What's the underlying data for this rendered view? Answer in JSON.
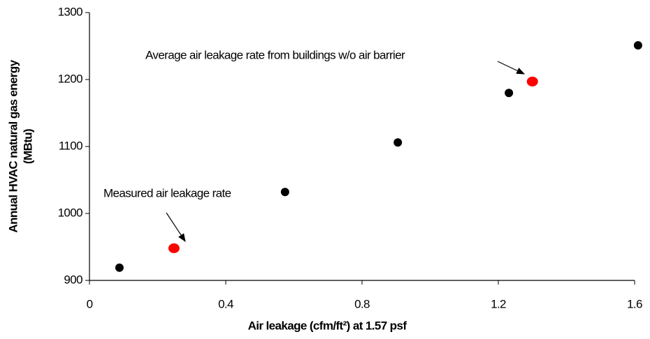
{
  "chart_data": {
    "type": "scatter",
    "xlabel": "Air leakage (cfm/ft²) at 1.57 psf",
    "ylabel": [
      "Annual HVAC natural gas energy",
      "(MBtu)"
    ],
    "annotations": [
      "Average air leakage rate from buildings w/o air barrier",
      "Measured air leakage rate"
    ],
    "series": [
      {
        "color": "#000000",
        "x": [
          0.088,
          0.574,
          0.905,
          1.231,
          1.61
        ],
        "values": [
          919,
          1032,
          1106,
          1180,
          1251
        ]
      },
      {
        "color": "#ff0000",
        "x": [
          0.248,
          1.3
        ],
        "values": [
          948,
          1197
        ]
      }
    ],
    "xlim": [
      0,
      1.6
    ],
    "xticks": [
      0,
      0.4,
      0.8,
      1.2,
      1.6
    ],
    "ylim": [
      900,
      1300
    ],
    "yticks": [
      900,
      1000,
      1100,
      1200,
      1300
    ],
    "grid": false
  }
}
